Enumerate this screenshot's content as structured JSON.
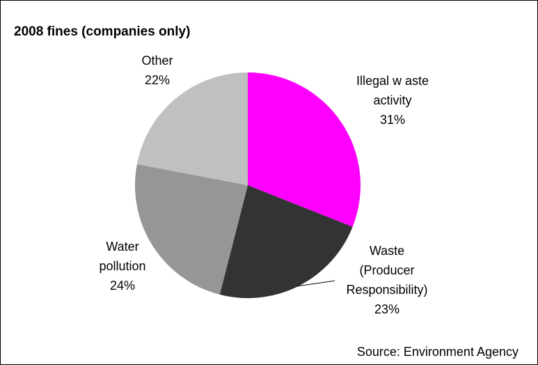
{
  "chart_data": {
    "type": "pie",
    "title": "2008 fines (companies only)",
    "source": "Source: Environment Agency",
    "start_angle_deg": 0,
    "direction": "clockwise",
    "slices": [
      {
        "label_lines": [
          "Illegal w aste",
          "activity"
        ],
        "value_label": "31%",
        "value": 31,
        "color": "#ff00ff"
      },
      {
        "label_lines": [
          "Waste",
          "(Producer",
          "Responsibility)"
        ],
        "value_label": "23%",
        "value": 23,
        "color": "#333333"
      },
      {
        "label_lines": [
          "Water",
          "pollution"
        ],
        "value_label": "24%",
        "value": 24,
        "color": "#969696"
      },
      {
        "label_lines": [
          "Other"
        ],
        "value_label": "22%",
        "value": 22,
        "color": "#c0c0c0"
      }
    ]
  }
}
